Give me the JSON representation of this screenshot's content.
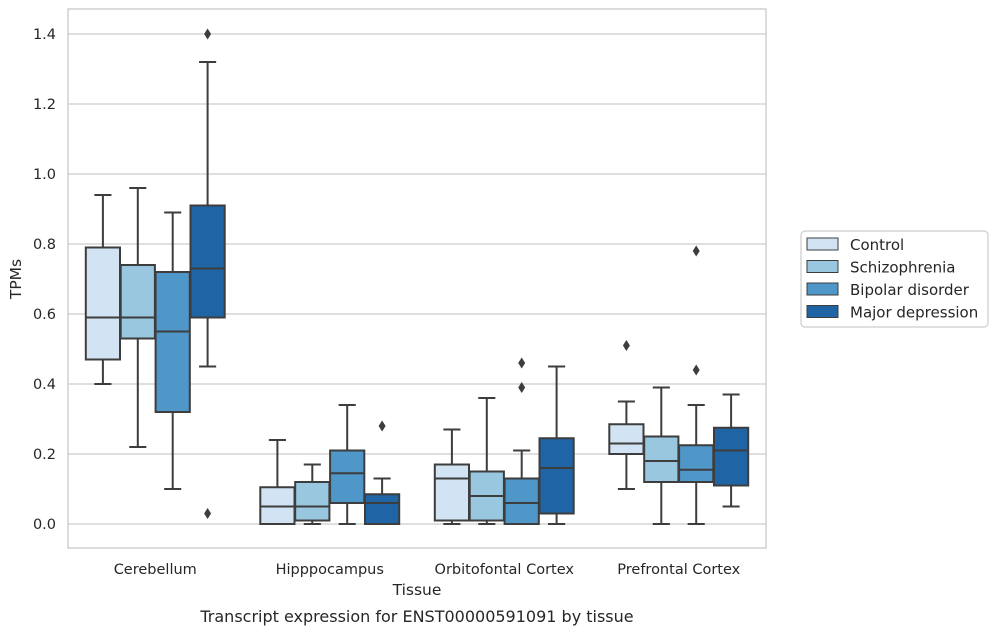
{
  "chart_data": {
    "type": "box",
    "xlabel": "Tissue",
    "ylabel": "TPMs",
    "caption": "Transcript expression for ENST00000591091 by tissue",
    "ylim": [
      -0.07,
      1.47
    ],
    "yticks": [
      0.0,
      0.2,
      0.4,
      0.6,
      0.8,
      1.0,
      1.2,
      1.4
    ],
    "ytick_labels": [
      "0.0",
      "0.2",
      "0.4",
      "0.6",
      "0.8",
      "1.0",
      "1.2",
      "1.4"
    ],
    "grid": "horizontal",
    "legend_placement": "right",
    "categories": [
      "Cerebellum",
      "Hipppocampus",
      "Orbitofontal Cortex",
      "Prefrontal Cortex"
    ],
    "series": [
      {
        "name": "Control",
        "color": "#d2e3f3",
        "boxes": [
          {
            "whislo": 0.4,
            "q1": 0.47,
            "med": 0.59,
            "q3": 0.79,
            "whishi": 0.94,
            "fliers": []
          },
          {
            "whislo": 0.0,
            "q1": 0.0,
            "med": 0.05,
            "q3": 0.105,
            "whishi": 0.24,
            "fliers": []
          },
          {
            "whislo": 0.0,
            "q1": 0.01,
            "med": 0.13,
            "q3": 0.17,
            "whishi": 0.27,
            "fliers": []
          },
          {
            "whislo": 0.1,
            "q1": 0.2,
            "med": 0.23,
            "q3": 0.285,
            "whishi": 0.35,
            "fliers": [
              0.51
            ]
          }
        ]
      },
      {
        "name": "Schizophrenia",
        "color": "#9ac7e0",
        "boxes": [
          {
            "whislo": 0.22,
            "q1": 0.53,
            "med": 0.59,
            "q3": 0.74,
            "whishi": 0.96,
            "fliers": []
          },
          {
            "whislo": 0.0,
            "q1": 0.01,
            "med": 0.05,
            "q3": 0.12,
            "whishi": 0.17,
            "fliers": []
          },
          {
            "whislo": 0.0,
            "q1": 0.01,
            "med": 0.08,
            "q3": 0.15,
            "whishi": 0.36,
            "fliers": []
          },
          {
            "whislo": 0.0,
            "q1": 0.12,
            "med": 0.18,
            "q3": 0.25,
            "whishi": 0.39,
            "fliers": []
          }
        ]
      },
      {
        "name": "Bipolar disorder",
        "color": "#4f97c9",
        "boxes": [
          {
            "whislo": 0.1,
            "q1": 0.32,
            "med": 0.55,
            "q3": 0.72,
            "whishi": 0.89,
            "fliers": []
          },
          {
            "whislo": 0.0,
            "q1": 0.06,
            "med": 0.145,
            "q3": 0.21,
            "whishi": 0.34,
            "fliers": []
          },
          {
            "whislo": 0.0,
            "q1": 0.0,
            "med": 0.06,
            "q3": 0.13,
            "whishi": 0.21,
            "fliers": [
              0.39,
              0.46
            ]
          },
          {
            "whislo": 0.0,
            "q1": 0.12,
            "med": 0.155,
            "q3": 0.225,
            "whishi": 0.34,
            "fliers": [
              0.44,
              0.78
            ]
          }
        ]
      },
      {
        "name": "Major depression",
        "color": "#1f65a6",
        "boxes": [
          {
            "whislo": 0.45,
            "q1": 0.59,
            "med": 0.73,
            "q3": 0.91,
            "whishi": 1.32,
            "fliers": [
              0.03,
              1.4
            ]
          },
          {
            "whislo": 0.0,
            "q1": 0.0,
            "med": 0.06,
            "q3": 0.085,
            "whishi": 0.13,
            "fliers": [
              0.28
            ]
          },
          {
            "whislo": 0.0,
            "q1": 0.03,
            "med": 0.16,
            "q3": 0.245,
            "whishi": 0.45,
            "fliers": []
          },
          {
            "whislo": 0.05,
            "q1": 0.11,
            "med": 0.21,
            "q3": 0.275,
            "whishi": 0.37,
            "fliers": []
          }
        ]
      }
    ]
  }
}
